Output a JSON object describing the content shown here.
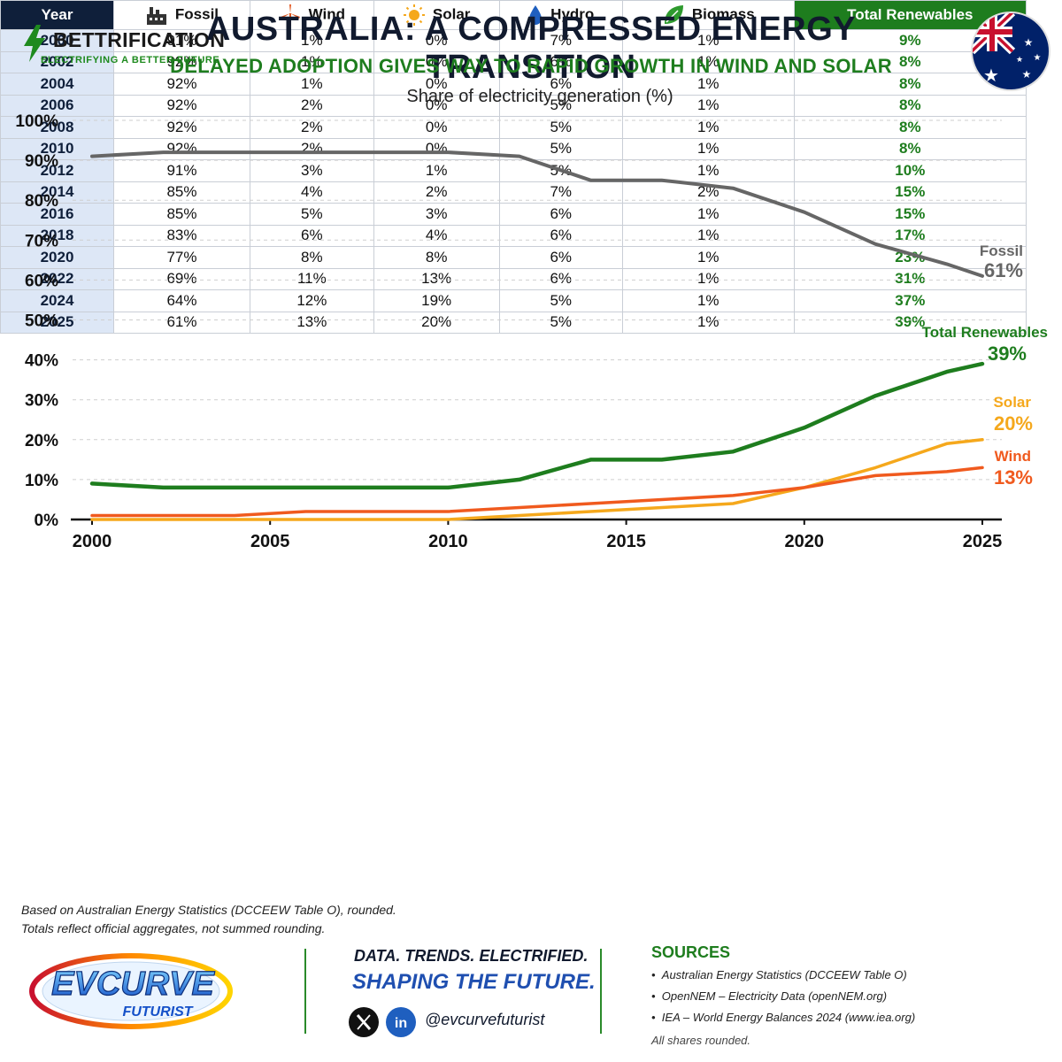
{
  "header": {
    "brand_name": "BETTRIFICATION",
    "brand_tagline": "ELECTRIFYING A BETTER FUTURE",
    "title": "AUSTRALIA: A COMPRESSED ENERGY TRANSITION",
    "subtitle": "DELAYED ADOPTION GIVES WAY TO RAPID GROWTH IN WIND AND SOLAR",
    "chart_caption": "Share of electricity generation (%)",
    "flag_icon": "australia-flag-icon"
  },
  "chart_data": {
    "type": "line",
    "title": "Share of electricity generation (%)",
    "xlabel": "",
    "ylabel": "",
    "xlim": [
      2000,
      2025
    ],
    "ylim": [
      0,
      100
    ],
    "x_ticks": [
      "2000",
      "2005",
      "2010",
      "2015",
      "2020",
      "2025"
    ],
    "y_ticks": [
      "0%",
      "10%",
      "20%",
      "30%",
      "40%",
      "50%",
      "60%",
      "70%",
      "80%",
      "90%",
      "100%"
    ],
    "grid": true,
    "series": [
      {
        "name": "Fossil",
        "color": "#666666",
        "end_label": "61%",
        "x": [
          2000,
          2002,
          2004,
          2006,
          2008,
          2010,
          2012,
          2014,
          2016,
          2018,
          2020,
          2022,
          2024,
          2025
        ],
        "values": [
          91,
          92,
          92,
          92,
          92,
          92,
          91,
          85,
          85,
          83,
          77,
          69,
          64,
          61
        ]
      },
      {
        "name": "Total Renewables",
        "color": "#1e7d1e",
        "end_label": "39%",
        "x": [
          2000,
          2002,
          2004,
          2006,
          2008,
          2010,
          2012,
          2014,
          2016,
          2018,
          2020,
          2022,
          2024,
          2025
        ],
        "values": [
          9,
          8,
          8,
          8,
          8,
          8,
          10,
          15,
          15,
          17,
          23,
          31,
          37,
          39
        ]
      },
      {
        "name": "Solar",
        "color": "#f5a81c",
        "end_label": "20%",
        "x": [
          2000,
          2002,
          2004,
          2006,
          2008,
          2010,
          2012,
          2014,
          2016,
          2018,
          2020,
          2022,
          2024,
          2025
        ],
        "values": [
          0,
          0,
          0,
          0,
          0,
          0,
          1,
          2,
          3,
          4,
          8,
          13,
          19,
          20
        ]
      },
      {
        "name": "Wind",
        "color": "#f05a1e",
        "end_label": "13%",
        "x": [
          2000,
          2002,
          2004,
          2006,
          2008,
          2010,
          2012,
          2014,
          2016,
          2018,
          2020,
          2022,
          2024,
          2025
        ],
        "values": [
          1,
          1,
          1,
          2,
          2,
          2,
          3,
          4,
          5,
          6,
          8,
          11,
          12,
          13
        ]
      }
    ]
  },
  "table": {
    "headers": {
      "year": "Year",
      "fossil": "Fossil",
      "wind": "Wind",
      "solar": "Solar",
      "hydro": "Hydro",
      "biomass": "Biomass",
      "renewables": "Total Renewables"
    },
    "rows": [
      {
        "year": "2000",
        "fossil": "91%",
        "wind": "1%",
        "solar": "0%",
        "hydro": "7%",
        "biomass": "1%",
        "renewables": "9%"
      },
      {
        "year": "2002",
        "fossil": "92%",
        "wind": "1%",
        "solar": "0%",
        "hydro": "6%",
        "biomass": "1%",
        "renewables": "8%"
      },
      {
        "year": "2004",
        "fossil": "92%",
        "wind": "1%",
        "solar": "0%",
        "hydro": "6%",
        "biomass": "1%",
        "renewables": "8%"
      },
      {
        "year": "2006",
        "fossil": "92%",
        "wind": "2%",
        "solar": "0%",
        "hydro": "5%",
        "biomass": "1%",
        "renewables": "8%"
      },
      {
        "year": "2008",
        "fossil": "92%",
        "wind": "2%",
        "solar": "0%",
        "hydro": "5%",
        "biomass": "1%",
        "renewables": "8%"
      },
      {
        "year": "2010",
        "fossil": "92%",
        "wind": "2%",
        "solar": "0%",
        "hydro": "5%",
        "biomass": "1%",
        "renewables": "8%"
      },
      {
        "year": "2012",
        "fossil": "91%",
        "wind": "3%",
        "solar": "1%",
        "hydro": "5%",
        "biomass": "1%",
        "renewables": "10%"
      },
      {
        "year": "2014",
        "fossil": "85%",
        "wind": "4%",
        "solar": "2%",
        "hydro": "7%",
        "biomass": "2%",
        "renewables": "15%"
      },
      {
        "year": "2016",
        "fossil": "85%",
        "wind": "5%",
        "solar": "3%",
        "hydro": "6%",
        "biomass": "1%",
        "renewables": "15%"
      },
      {
        "year": "2018",
        "fossil": "83%",
        "wind": "6%",
        "solar": "4%",
        "hydro": "6%",
        "biomass": "1%",
        "renewables": "17%"
      },
      {
        "year": "2020",
        "fossil": "77%",
        "wind": "8%",
        "solar": "8%",
        "hydro": "6%",
        "biomass": "1%",
        "renewables": "23%"
      },
      {
        "year": "2022",
        "fossil": "69%",
        "wind": "11%",
        "solar": "13%",
        "hydro": "6%",
        "biomass": "1%",
        "renewables": "31%"
      },
      {
        "year": "2024",
        "fossil": "64%",
        "wind": "12%",
        "solar": "19%",
        "hydro": "5%",
        "biomass": "1%",
        "renewables": "37%"
      },
      {
        "year": "2025",
        "fossil": "61%",
        "wind": "13%",
        "solar": "20%",
        "hydro": "5%",
        "biomass": "1%",
        "renewables": "39%"
      }
    ]
  },
  "notes": {
    "line1": "Based on Australian Energy Statistics (DCCEEW Table O), rounded.",
    "line2": "Totals reflect official aggregates, not summed rounding."
  },
  "footer": {
    "logo_top": "EVCURVE",
    "logo_bottom": "FUTURIST",
    "tagline1": "DATA. TRENDS. ELECTRIFIED.",
    "tagline2": "SHAPING THE FUTURE.",
    "handle": "@evcurvefuturist",
    "sources_title": "SOURCES",
    "sources": [
      "Australian Energy Statistics (DCCEEW Table O)",
      "OpenNEM – Electricity Data (openNEM.org)",
      "IEA – World Energy Balances 2024 (www.iea.org)"
    ],
    "sources_note": "All shares rounded."
  }
}
